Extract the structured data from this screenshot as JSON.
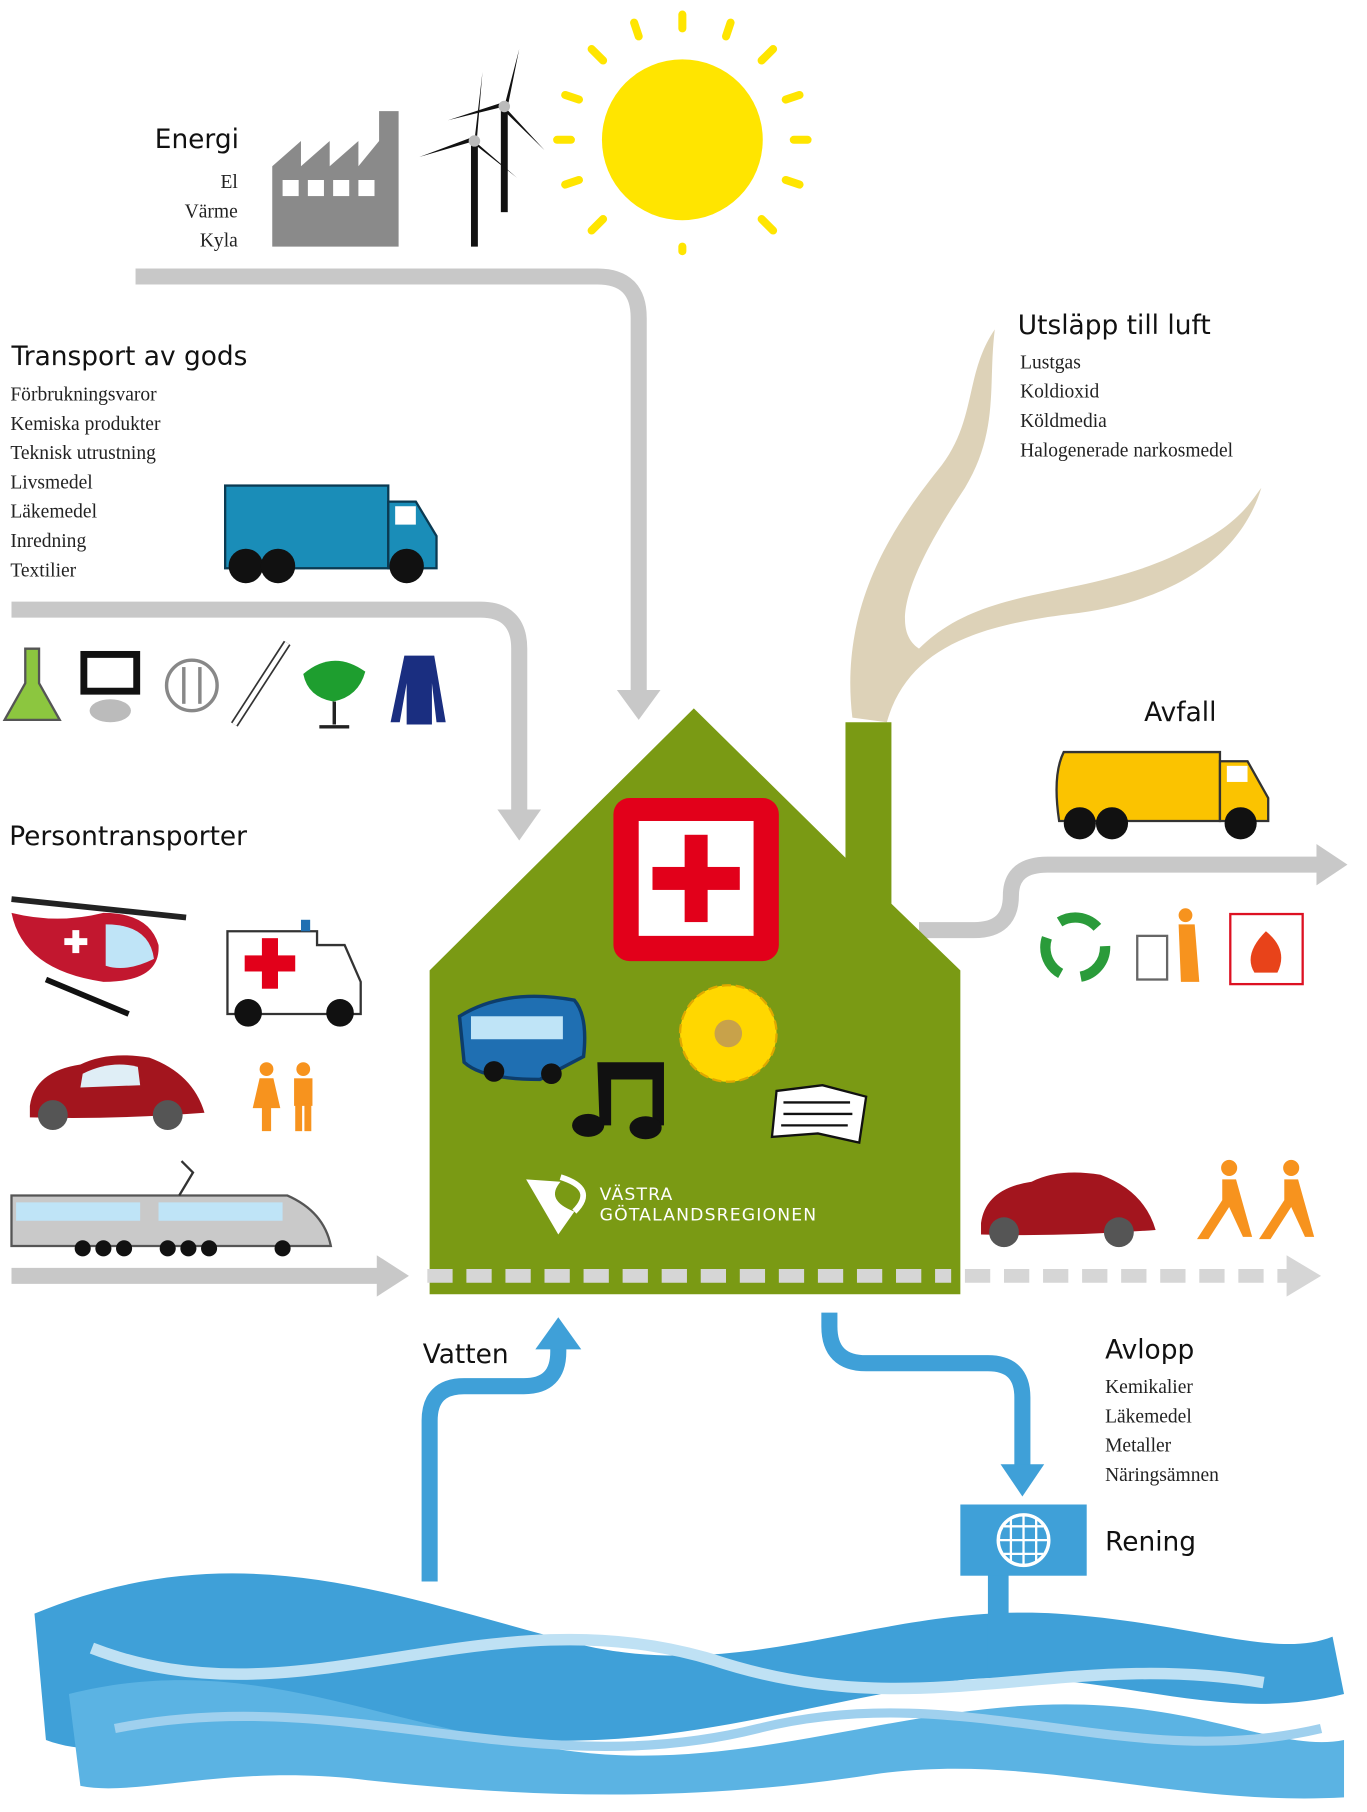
{
  "energy": {
    "title": "Energi",
    "items": [
      "El",
      "Värme",
      "Kyla"
    ]
  },
  "goods_transport": {
    "title": "Transport av gods",
    "items": [
      "Förbrukningsvaror",
      "Kemiska produkter",
      "Teknisk utrustning",
      "Livsmedel",
      "Läkemedel",
      "Inredning",
      "Textilier"
    ]
  },
  "passenger_transport": {
    "title": "Persontransporter"
  },
  "air_emissions": {
    "title": "Utsläpp till luft",
    "items": [
      "Lustgas",
      "Koldioxid",
      "Köldmedia",
      "Halogenerade narkosmedel"
    ]
  },
  "waste": {
    "title": "Avfall"
  },
  "water": {
    "title": "Vatten"
  },
  "sewage": {
    "title": "Avlopp",
    "items": [
      "Kemikalier",
      "Läkemedel",
      "Metaller",
      "Näringsämnen"
    ]
  },
  "treatment": {
    "title": "Rening"
  },
  "logo": {
    "line1": "VÄSTRA",
    "line2": "GÖTALANDSREGIONEN"
  }
}
